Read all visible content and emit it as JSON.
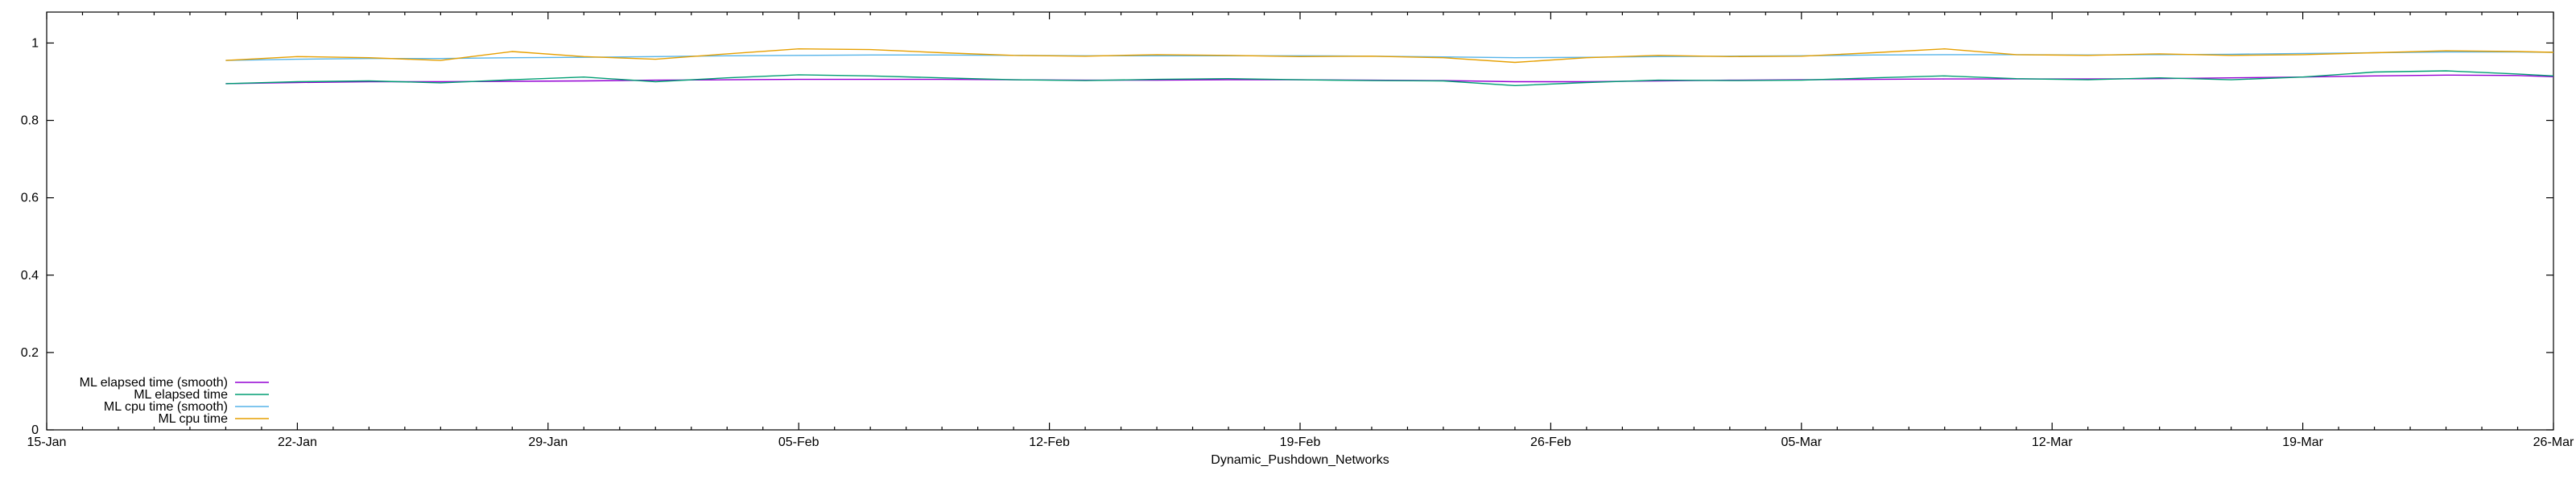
{
  "chart_data": {
    "type": "line",
    "title": "",
    "xlabel": "Dynamic_Pushdown_Networks",
    "ylabel": "",
    "x_range": [
      "15-Jan",
      "26-Mar"
    ],
    "x_ticks": [
      "15-Jan",
      "22-Jan",
      "29-Jan",
      "05-Feb",
      "12-Feb",
      "19-Feb",
      "26-Feb",
      "05-Mar",
      "12-Mar",
      "19-Mar",
      "26-Mar"
    ],
    "y_ticks": [
      "0",
      "0.2",
      "0.4",
      "0.6",
      "0.8",
      "1"
    ],
    "ylim": [
      0,
      1.08
    ],
    "grid": false,
    "legend_position": "bottom-left",
    "x_dates": [
      "20-Jan",
      "22-Jan",
      "24-Jan",
      "26-Jan",
      "28-Jan",
      "30-Jan",
      "01-Feb",
      "03-Feb",
      "05-Feb",
      "07-Feb",
      "09-Feb",
      "11-Feb",
      "13-Feb",
      "15-Feb",
      "17-Feb",
      "19-Feb",
      "21-Feb",
      "23-Feb",
      "25-Feb",
      "27-Feb",
      "01-Mar",
      "03-Mar",
      "05-Mar",
      "07-Mar",
      "09-Mar",
      "11-Mar",
      "13-Mar",
      "15-Mar",
      "17-Mar",
      "19-Mar",
      "21-Mar",
      "23-Mar",
      "25-Mar",
      "26-Mar"
    ],
    "series": [
      {
        "name": "ML elapsed time (smooth)",
        "color": "#9400d3",
        "values": [
          0.895,
          0.898,
          0.9,
          0.9,
          0.901,
          0.902,
          0.904,
          0.905,
          0.906,
          0.906,
          0.906,
          0.905,
          0.904,
          0.904,
          0.905,
          0.905,
          0.904,
          0.903,
          0.9,
          0.9,
          0.902,
          0.904,
          0.905,
          0.906,
          0.907,
          0.907,
          0.907,
          0.908,
          0.91,
          0.912,
          0.915,
          0.917,
          0.916,
          0.913
        ]
      },
      {
        "name": "ML elapsed time",
        "color": "#009e73",
        "values": [
          0.895,
          0.9,
          0.902,
          0.897,
          0.905,
          0.912,
          0.9,
          0.91,
          0.918,
          0.915,
          0.91,
          0.905,
          0.903,
          0.906,
          0.908,
          0.905,
          0.903,
          0.902,
          0.89,
          0.898,
          0.904,
          0.903,
          0.904,
          0.91,
          0.915,
          0.908,
          0.905,
          0.91,
          0.905,
          0.912,
          0.925,
          0.928,
          0.92,
          0.915
        ]
      },
      {
        "name": "ML cpu time (smooth)",
        "color": "#56b4e9",
        "values": [
          0.955,
          0.958,
          0.96,
          0.96,
          0.962,
          0.963,
          0.965,
          0.967,
          0.968,
          0.969,
          0.969,
          0.968,
          0.967,
          0.967,
          0.967,
          0.967,
          0.966,
          0.964,
          0.962,
          0.963,
          0.965,
          0.966,
          0.967,
          0.969,
          0.97,
          0.97,
          0.969,
          0.97,
          0.971,
          0.973,
          0.975,
          0.977,
          0.977,
          0.976
        ]
      },
      {
        "name": "ML cpu time",
        "color": "#e69f00",
        "values": [
          0.955,
          0.965,
          0.962,
          0.955,
          0.978,
          0.965,
          0.958,
          0.972,
          0.985,
          0.983,
          0.975,
          0.968,
          0.966,
          0.97,
          0.968,
          0.965,
          0.966,
          0.962,
          0.95,
          0.962,
          0.968,
          0.965,
          0.966,
          0.975,
          0.985,
          0.97,
          0.968,
          0.972,
          0.968,
          0.97,
          0.975,
          0.98,
          0.978,
          0.976
        ]
      }
    ]
  }
}
